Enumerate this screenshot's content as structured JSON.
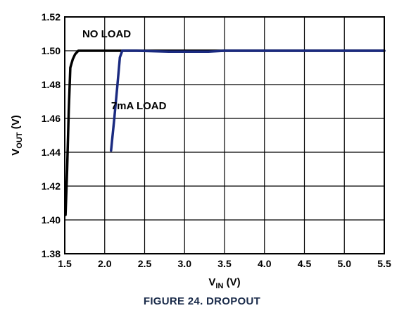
{
  "chart_data": {
    "type": "line",
    "xlabel_main": "V",
    "xlabel_sub": "IN",
    "xlabel_unit": " (V)",
    "ylabel_main": "V",
    "ylabel_sub": "OUT",
    "ylabel_unit": " (V)",
    "xlim": [
      1.5,
      5.5
    ],
    "ylim": [
      1.38,
      1.52
    ],
    "x_ticks": [
      "1.5",
      "2.0",
      "2.5",
      "3.0",
      "3.5",
      "4.0",
      "4.5",
      "5.0",
      "5.5"
    ],
    "y_ticks": [
      "1.38",
      "1.40",
      "1.42",
      "1.44",
      "1.46",
      "1.48",
      "1.50",
      "1.52"
    ],
    "grid": true,
    "series": [
      {
        "name": "NO LOAD",
        "color": "#000000",
        "x": [
          1.51,
          1.53,
          1.55,
          1.57,
          1.6,
          1.63,
          1.67,
          1.7,
          1.73,
          1.8,
          2.0,
          3.0,
          4.0,
          5.0,
          5.5
        ],
        "y": [
          1.403,
          1.43,
          1.465,
          1.49,
          1.495,
          1.498,
          1.5,
          1.5,
          1.5,
          1.5,
          1.5,
          1.5,
          1.5,
          1.5,
          1.5
        ]
      },
      {
        "name": "7mA LOAD",
        "color": "#1a2a80",
        "x": [
          2.08,
          2.12,
          2.16,
          2.19,
          2.22,
          2.25,
          2.4,
          2.8,
          3.3,
          3.5,
          4.0,
          5.0,
          5.5
        ],
        "y": [
          1.441,
          1.46,
          1.48,
          1.496,
          1.5,
          1.5,
          1.5,
          1.4995,
          1.4995,
          1.5,
          1.5,
          1.5,
          1.5
        ]
      }
    ],
    "annotations": [
      {
        "text": "NO LOAD",
        "x": 1.72,
        "y": 1.508
      },
      {
        "text": "7mA LOAD",
        "x": 2.08,
        "y": 1.4655
      }
    ]
  },
  "caption": "FIGURE 24.  DROPOUT"
}
